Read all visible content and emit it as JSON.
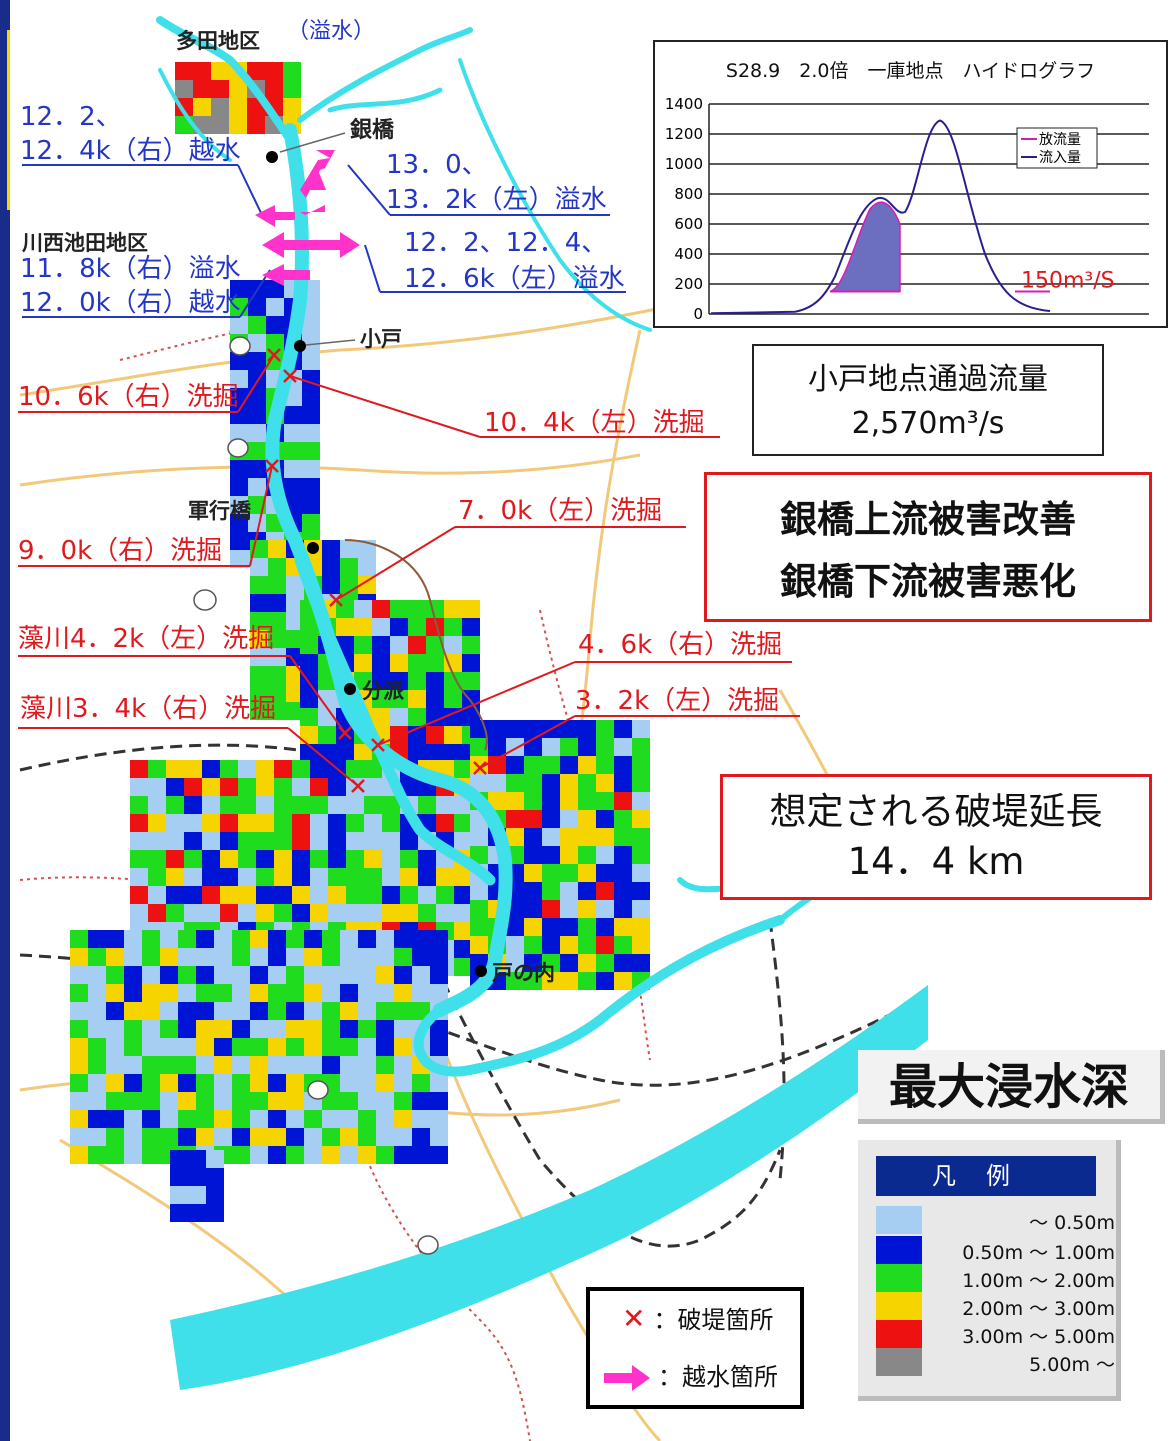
{
  "title_places": {
    "tada": "多田地区",
    "tada_note": "（溢水）",
    "ginbashi": "銀橋",
    "kawanishi": "川西池田地区",
    "koto": "小戸",
    "gunko": "軍行橋",
    "bunpa": "分派",
    "tonouchi": "戸の内"
  },
  "annotations_blue": {
    "a1_line1": "12．2、",
    "a1_line2": "12．4k（右）越水",
    "a2_line1": "13．0、",
    "a2_line2": "13．2k（左）溢水",
    "a3_line1": "12．2、12．4、",
    "a3_line2": "12．6k（左）溢水",
    "a4_line1": "11．8k（右）溢水",
    "a4_line2": "12．0k（右）越水"
  },
  "annotations_red": {
    "r1": "10．6k（右）洗掘",
    "r2": "10．4k（左）洗掘",
    "r3": "7．0k（左）洗掘",
    "r4": "9．0k（右）洗掘",
    "r5": "藻川4．2k（左）洗掘",
    "r6": "4．6k（右）洗掘",
    "r7": "藻川3．4k（右）洗掘",
    "r8": "3．2k（左）洗掘"
  },
  "hydrograph": {
    "title": "S28.9　2.0倍　一庫地点　ハイドログラフ",
    "y_ticks": [
      "1400",
      "1200",
      "1000",
      "800",
      "600",
      "400",
      "200",
      "0"
    ],
    "legend": [
      "放流量",
      "流入量"
    ],
    "annotation": "150m³/S",
    "colors": {
      "outflow": "#d81bb5",
      "inflow": "#2a1f8f"
    }
  },
  "kodo_flow": {
    "line1": "小戸地点通過流量",
    "line2": "2,570m³/s"
  },
  "effect": {
    "line1": "銀橋上流被害改善",
    "line2": "銀橋下流被害悪化"
  },
  "breach_length": {
    "line1": "想定される破堤延長",
    "line2": "14．4 km"
  },
  "max_depth_title": "最大浸水深",
  "legend": {
    "title": "凡例",
    "items": [
      {
        "label": "～ 0.50m",
        "color": "#a6cdf2"
      },
      {
        "label": "0.50m ～ 1.00m",
        "color": "#0014d6"
      },
      {
        "label": "1.00m ～ 2.00m",
        "color": "#1fdc1f"
      },
      {
        "label": "2.00m ～ 3.00m",
        "color": "#f5d400"
      },
      {
        "label": "3.00m ～ 5.00m",
        "color": "#ee1111"
      },
      {
        "label": "5.00m ～",
        "color": "#888888"
      }
    ]
  },
  "marks": {
    "breach": "：破堤箇所",
    "overflow": "：越水箇所"
  },
  "colors": {
    "river": "#3fe0ea",
    "road": "#f2c97a",
    "rail": "#333333"
  }
}
